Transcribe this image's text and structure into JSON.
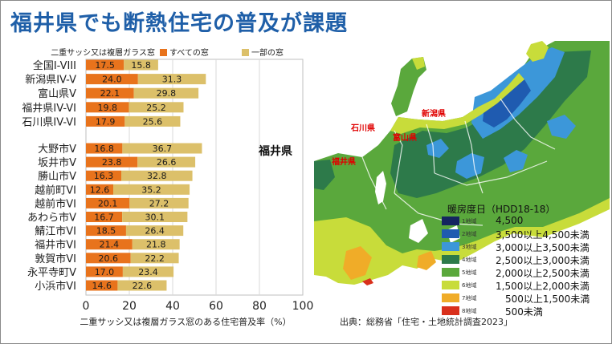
{
  "title": "福井県でも断熱住宅の普及が課題",
  "chart_data": {
    "type": "bar",
    "orientation": "horizontal",
    "legend_title": "二重サッシ又は複層ガラス窓",
    "categories": [
      "全国I-VIII",
      "新潟県IV-V",
      "富山県V",
      "福井県IV-VI",
      "石川県IV-VI",
      "大野市V",
      "坂井市V",
      "勝山市V",
      "越前町VI",
      "越前市VI",
      "あわら市V",
      "鯖江市VI",
      "福井市VI",
      "敦賀市VI",
      "永平寺町V",
      "小浜市VI"
    ],
    "series": [
      {
        "name": "すべての窓",
        "color": "#e8731c",
        "values": [
          17.5,
          24.0,
          22.1,
          19.8,
          17.9,
          16.8,
          23.8,
          16.3,
          12.6,
          20.1,
          16.7,
          18.5,
          21.4,
          20.6,
          17.0,
          14.6
        ]
      },
      {
        "name": "一部の窓",
        "color": "#dcc06a",
        "values": [
          15.8,
          31.3,
          29.8,
          25.2,
          25.6,
          36.7,
          26.6,
          32.8,
          35.2,
          27.2,
          30.1,
          26.4,
          21.8,
          22.2,
          23.4,
          22.6
        ]
      }
    ],
    "value_labels": [
      [
        "17.5",
        "24.0",
        "22.1",
        "19.8",
        "17.9",
        "16.8",
        "23.8",
        "16.3",
        "12.6",
        "20.1",
        "16.7",
        "18.5",
        "21.4",
        "20.6",
        "17.0",
        "14.6"
      ],
      [
        "15.8",
        "31.3",
        "29.8",
        "25.2",
        "25.6",
        "36.7",
        "26.6",
        "32.8",
        "35.2",
        "27.2",
        "30.1",
        "26.4",
        "21.8",
        "22.2",
        "23.4",
        "22.6"
      ]
    ],
    "stacked": true,
    "xlim": [
      0,
      100
    ],
    "xticks": [
      "0",
      "20",
      "40",
      "60",
      "80",
      "100"
    ],
    "xlabel": "二重サッシ又は複層ガラス窓のある住宅普及率（%）",
    "annotation": "福井県",
    "grid": "vertical"
  },
  "map": {
    "region_labels": [
      "新潟県",
      "富山県",
      "石川県",
      "福井県"
    ],
    "label_color": "#e00000",
    "legend_title": "暖房度日（HDD18-18）",
    "legend": [
      {
        "code": "1地域",
        "range": "4,500",
        "color": "#152560"
      },
      {
        "code": "2地域",
        "range": "3,500以上4,500未満",
        "color": "#1f5bb0"
      },
      {
        "code": "3地域",
        "range": "3,000以上3,500未満",
        "color": "#3c97d9"
      },
      {
        "code": "4地域",
        "range": "2,500以上3,000未満",
        "color": "#2d7a4a"
      },
      {
        "code": "5地域",
        "range": "2,000以上2,500未満",
        "color": "#5aa83c"
      },
      {
        "code": "6地域",
        "range": "1,500以上2,000未満",
        "color": "#c8dc3a"
      },
      {
        "code": "7地域",
        "range": "500以上1,500未満",
        "color": "#f0ac28"
      },
      {
        "code": "8地域",
        "range": "500未満",
        "color": "#d9301c"
      }
    ]
  },
  "source": "出典：総務省「住宅・土地統計調査2023」"
}
